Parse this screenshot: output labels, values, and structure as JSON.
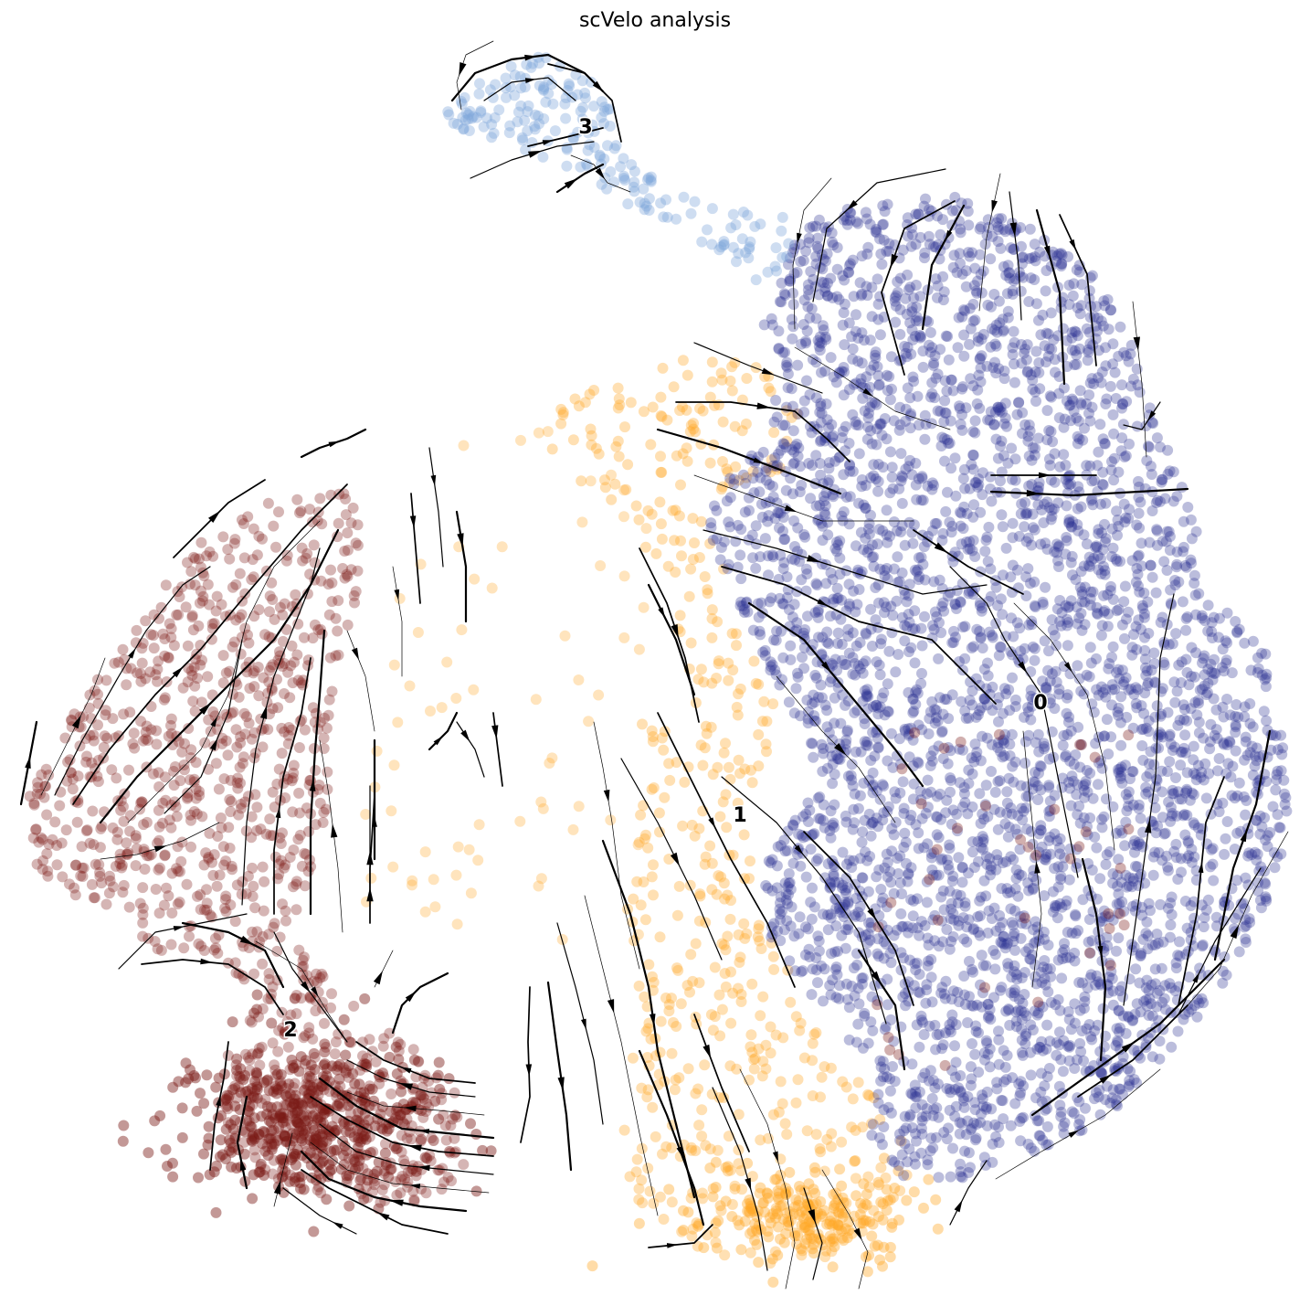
{
  "chart_data": {
    "type": "scatter",
    "title": "scVelo analysis",
    "xlabel": "",
    "ylabel": "",
    "grid": false,
    "axes_visible": false,
    "overlay": "velocity streamlines (black arrows)",
    "clusters": [
      {
        "label": "0",
        "color": "#2b3293",
        "label_pos": [
          1139,
          770
        ]
      },
      {
        "label": "1",
        "color": "#ffa726",
        "label_pos": [
          810,
          893
        ]
      },
      {
        "label": "2",
        "color": "#7b1a17",
        "label_pos": [
          318,
          1128
        ]
      },
      {
        "label": "3",
        "color": "#7ea6d9",
        "label_pos": [
          641,
          140
        ]
      }
    ]
  }
}
